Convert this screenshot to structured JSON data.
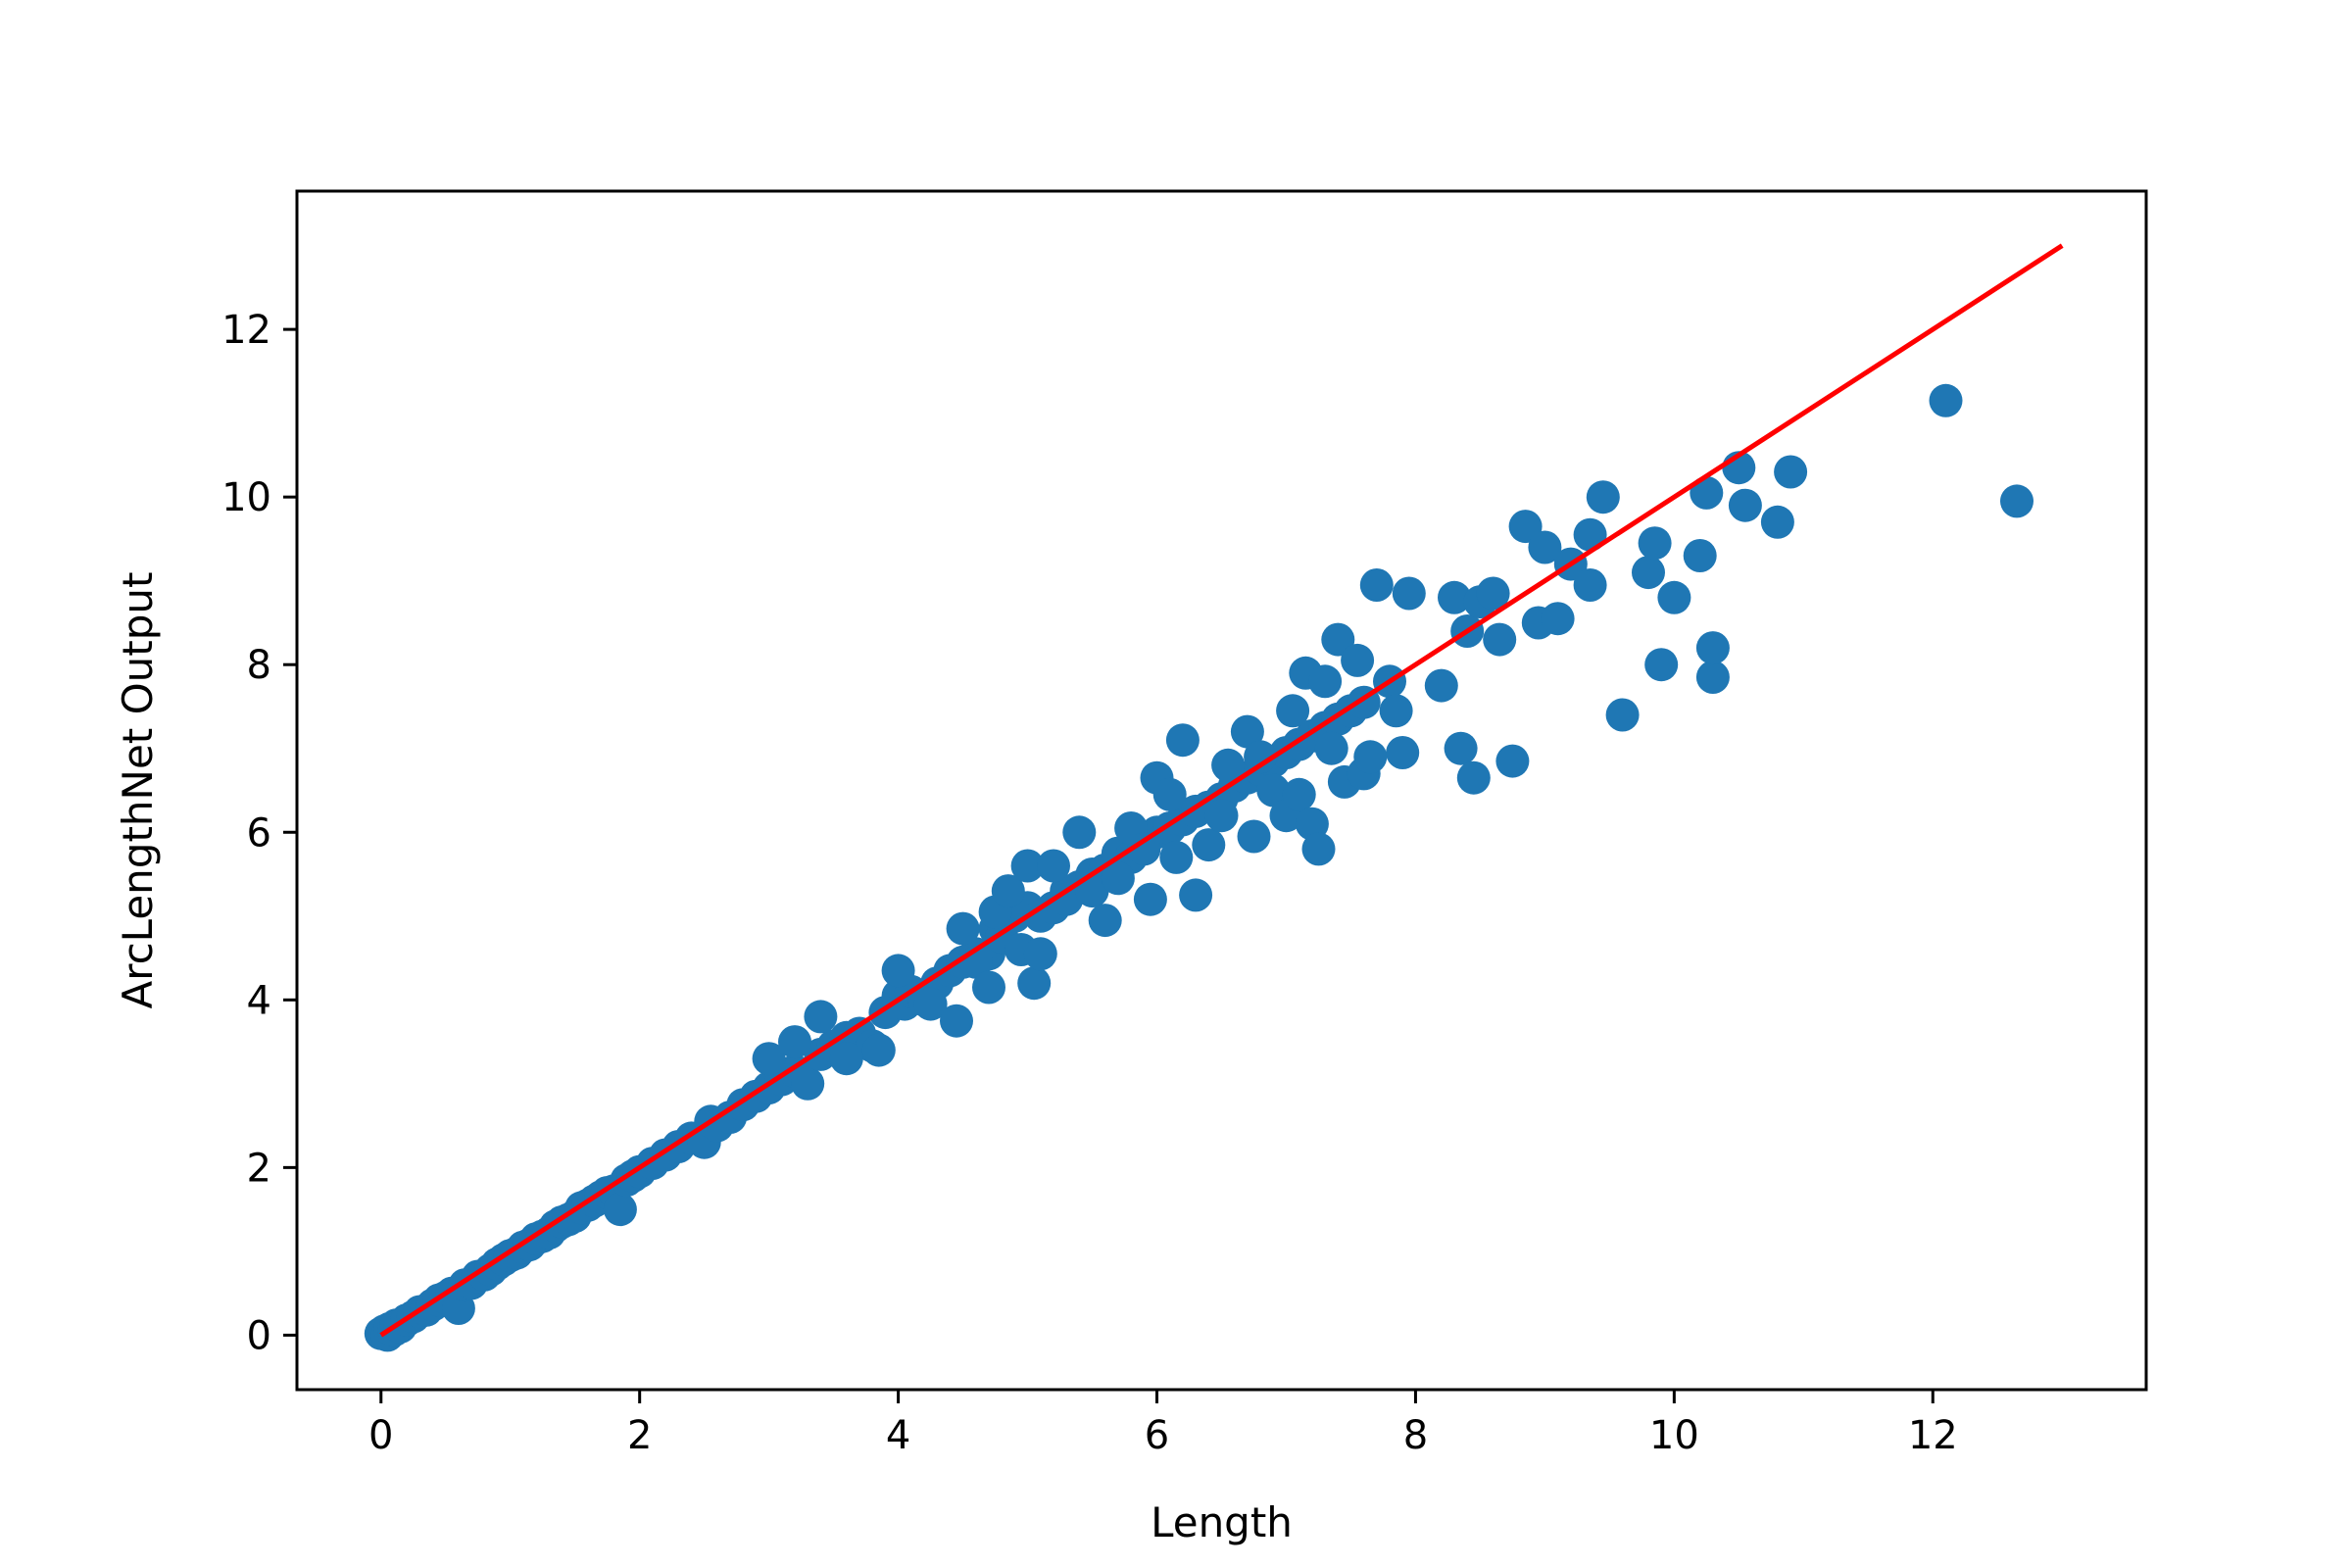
{
  "chart_data": {
    "type": "scatter",
    "title": "",
    "xlabel": "Length",
    "ylabel": "ArcLengthNet Output",
    "xlim": [
      -0.65,
      13.65
    ],
    "ylim": [
      -0.65,
      13.65
    ],
    "xticks": [
      0,
      2,
      4,
      6,
      8,
      10,
      12
    ],
    "yticks": [
      0,
      2,
      4,
      6,
      8,
      10,
      12
    ],
    "grid": false,
    "legend": "none",
    "colors": {
      "scatter": "#1f77b4",
      "line": "#ff0000",
      "axes": "#000000"
    },
    "series": [
      {
        "type": "scatter",
        "points": [
          [
            0.0,
            0.02
          ],
          [
            0.03,
            0.05
          ],
          [
            0.05,
            0.0
          ],
          [
            0.07,
            0.08
          ],
          [
            0.1,
            0.06
          ],
          [
            0.12,
            0.12
          ],
          [
            0.15,
            0.1
          ],
          [
            0.2,
            0.18
          ],
          [
            0.25,
            0.22
          ],
          [
            0.3,
            0.28
          ],
          [
            0.35,
            0.3
          ],
          [
            0.4,
            0.36
          ],
          [
            0.45,
            0.42
          ],
          [
            0.5,
            0.45
          ],
          [
            0.55,
            0.5
          ],
          [
            0.6,
            0.32
          ],
          [
            0.65,
            0.6
          ],
          [
            0.7,
            0.62
          ],
          [
            0.75,
            0.7
          ],
          [
            0.8,
            0.72
          ],
          [
            0.85,
            0.78
          ],
          [
            0.9,
            0.85
          ],
          [
            0.95,
            0.9
          ],
          [
            1.0,
            0.95
          ],
          [
            1.05,
            0.98
          ],
          [
            1.1,
            1.05
          ],
          [
            1.15,
            1.08
          ],
          [
            1.2,
            1.15
          ],
          [
            1.25,
            1.18
          ],
          [
            1.3,
            1.22
          ],
          [
            1.35,
            1.3
          ],
          [
            1.4,
            1.35
          ],
          [
            1.45,
            1.38
          ],
          [
            1.5,
            1.42
          ],
          [
            1.55,
            1.52
          ],
          [
            1.6,
            1.55
          ],
          [
            1.65,
            1.6
          ],
          [
            1.7,
            1.65
          ],
          [
            1.75,
            1.7
          ],
          [
            1.8,
            1.72
          ],
          [
            1.85,
            1.5
          ],
          [
            1.9,
            1.85
          ],
          [
            1.95,
            1.9
          ],
          [
            2.0,
            1.95
          ],
          [
            2.1,
            2.05
          ],
          [
            2.2,
            2.15
          ],
          [
            2.3,
            2.25
          ],
          [
            2.4,
            2.35
          ],
          [
            2.5,
            2.3
          ],
          [
            2.55,
            2.55
          ],
          [
            2.6,
            2.5
          ],
          [
            2.7,
            2.6
          ],
          [
            2.8,
            2.75
          ],
          [
            2.9,
            2.85
          ],
          [
            3.0,
            2.95
          ],
          [
            3.1,
            3.05
          ],
          [
            3.2,
            3.15
          ],
          [
            3.3,
            3.0
          ],
          [
            3.4,
            3.35
          ],
          [
            3.5,
            3.45
          ],
          [
            3.6,
            3.55
          ],
          [
            3.7,
            3.6
          ],
          [
            3.8,
            3.45
          ],
          [
            3.9,
            3.85
          ],
          [
            4.0,
            4.05
          ],
          [
            4.05,
            3.95
          ],
          [
            4.1,
            4.1
          ],
          [
            4.2,
            4.0
          ],
          [
            4.3,
            4.2
          ],
          [
            4.4,
            4.35
          ],
          [
            4.5,
            4.45
          ],
          [
            4.6,
            4.55
          ],
          [
            4.7,
            4.55
          ],
          [
            4.75,
            4.85
          ],
          [
            4.8,
            4.75
          ],
          [
            4.9,
            5.0
          ],
          [
            5.0,
            5.1
          ],
          [
            5.05,
            4.2
          ],
          [
            5.1,
            5.0
          ],
          [
            5.2,
            5.1
          ],
          [
            5.3,
            5.3
          ],
          [
            5.4,
            5.35
          ],
          [
            5.5,
            5.5
          ],
          [
            5.6,
            5.55
          ],
          [
            5.7,
            5.75
          ],
          [
            5.8,
            5.7
          ],
          [
            5.9,
            5.9
          ],
          [
            6.0,
            6.0
          ],
          [
            6.1,
            6.05
          ],
          [
            6.2,
            6.15
          ],
          [
            6.3,
            6.25
          ],
          [
            6.4,
            6.3
          ],
          [
            6.5,
            6.4
          ],
          [
            6.6,
            6.55
          ],
          [
            6.7,
            6.65
          ],
          [
            6.8,
            6.75
          ],
          [
            6.9,
            6.85
          ],
          [
            7.0,
            6.95
          ],
          [
            7.1,
            7.05
          ],
          [
            7.2,
            7.15
          ],
          [
            7.3,
            7.25
          ],
          [
            7.4,
            7.35
          ],
          [
            7.5,
            7.45
          ],
          [
            7.6,
            7.55
          ],
          [
            3.0,
            3.3
          ],
          [
            3.2,
            3.5
          ],
          [
            3.4,
            3.8
          ],
          [
            3.6,
            3.3
          ],
          [
            3.85,
            3.4
          ],
          [
            4.0,
            4.35
          ],
          [
            4.25,
            3.95
          ],
          [
            4.45,
            3.75
          ],
          [
            4.5,
            4.85
          ],
          [
            4.6,
            4.45
          ],
          [
            4.7,
            4.15
          ],
          [
            4.75,
            5.05
          ],
          [
            4.85,
            5.3
          ],
          [
            4.95,
            4.6
          ],
          [
            5.0,
            5.6
          ],
          [
            5.1,
            4.55
          ],
          [
            5.2,
            5.6
          ],
          [
            5.3,
            5.2
          ],
          [
            5.4,
            6.0
          ],
          [
            5.5,
            5.3
          ],
          [
            5.6,
            4.95
          ],
          [
            5.7,
            5.45
          ],
          [
            5.8,
            6.05
          ],
          [
            5.9,
            5.8
          ],
          [
            5.95,
            5.2
          ],
          [
            6.0,
            6.65
          ],
          [
            6.1,
            6.45
          ],
          [
            6.15,
            5.7
          ],
          [
            6.2,
            7.1
          ],
          [
            6.3,
            5.25
          ],
          [
            6.4,
            5.85
          ],
          [
            6.5,
            6.2
          ],
          [
            6.55,
            6.8
          ],
          [
            6.7,
            7.2
          ],
          [
            6.75,
            5.95
          ],
          [
            6.8,
            6.9
          ],
          [
            6.9,
            6.5
          ],
          [
            7.0,
            6.2
          ],
          [
            7.05,
            7.45
          ],
          [
            7.1,
            6.45
          ],
          [
            7.15,
            7.9
          ],
          [
            7.2,
            6.1
          ],
          [
            7.25,
            5.8
          ],
          [
            7.3,
            7.8
          ],
          [
            7.35,
            7.0
          ],
          [
            7.4,
            8.3
          ],
          [
            7.45,
            6.6
          ],
          [
            7.55,
            8.05
          ],
          [
            7.6,
            6.7
          ],
          [
            7.65,
            6.9
          ],
          [
            7.7,
            8.95
          ],
          [
            7.8,
            7.8
          ],
          [
            7.85,
            7.45
          ],
          [
            7.9,
            6.95
          ],
          [
            7.95,
            8.85
          ],
          [
            8.2,
            7.75
          ],
          [
            8.3,
            8.8
          ],
          [
            8.35,
            7.0
          ],
          [
            8.4,
            8.4
          ],
          [
            8.45,
            6.65
          ],
          [
            8.5,
            8.75
          ],
          [
            8.6,
            8.85
          ],
          [
            8.65,
            8.3
          ],
          [
            8.75,
            6.85
          ],
          [
            8.85,
            9.65
          ],
          [
            8.95,
            8.5
          ],
          [
            9.0,
            9.4
          ],
          [
            9.1,
            8.55
          ],
          [
            9.2,
            9.2
          ],
          [
            9.35,
            9.55
          ],
          [
            9.35,
            8.95
          ],
          [
            9.45,
            10.0
          ],
          [
            9.6,
            7.4
          ],
          [
            9.8,
            9.1
          ],
          [
            9.85,
            9.45
          ],
          [
            9.9,
            8.0
          ],
          [
            10.0,
            8.8
          ],
          [
            10.2,
            9.3
          ],
          [
            10.25,
            10.05
          ],
          [
            10.3,
            7.85
          ],
          [
            10.3,
            8.2
          ],
          [
            10.5,
            10.35
          ],
          [
            10.55,
            9.9
          ],
          [
            10.8,
            9.7
          ],
          [
            10.9,
            10.3
          ],
          [
            12.1,
            11.15
          ],
          [
            12.65,
            9.95
          ]
        ]
      },
      {
        "type": "line",
        "points": [
          [
            0,
            0
          ],
          [
            13,
            13
          ]
        ]
      }
    ]
  }
}
